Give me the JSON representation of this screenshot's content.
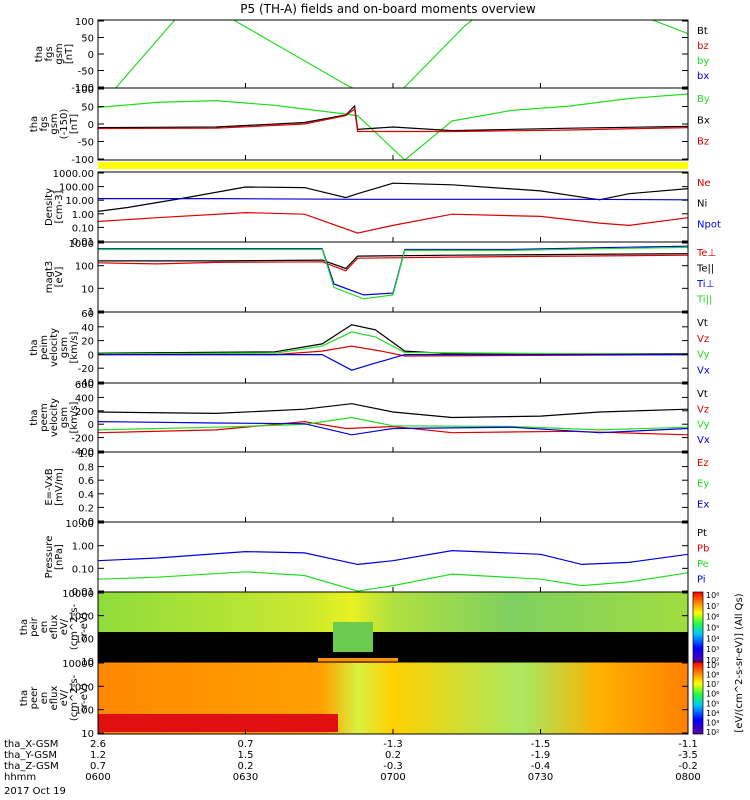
{
  "title": "P5 (TH-A) fields and on-board moments overview",
  "date": "2017 Oct 19",
  "colors": {
    "black": "#000000",
    "red": "#dd0000",
    "green": "#22dd22",
    "blue": "#0000dd",
    "yellow": "#ffff00"
  },
  "chart_data": [
    {
      "type": "line",
      "ylabel": [
        "tha",
        "fgs",
        "gsm",
        "[nT]"
      ],
      "ylim": [
        -100,
        100
      ],
      "yticks": [
        "100",
        "50",
        "0",
        "-50",
        "-100"
      ],
      "legend": [
        "Bt",
        "bz",
        "by",
        "bx"
      ],
      "series": [
        {
          "name": "by",
          "points": [
            [
              0,
              -160
            ],
            [
              0.06,
              -40
            ],
            [
              0.14,
              120
            ],
            [
              0.22,
              110
            ],
            [
              0.42,
              -90
            ],
            [
              0.49,
              -150
            ],
            [
              0.62,
              80
            ],
            [
              0.75,
              260
            ],
            [
              0.88,
              140
            ],
            [
              1.0,
              60
            ]
          ]
        }
      ]
    },
    {
      "type": "line",
      "ylabel": [
        "tha",
        "fgs",
        "gsm",
        "(-150)",
        "[nT]"
      ],
      "ylim": [
        -120,
        120
      ],
      "yticks": [
        "100",
        "50",
        "0",
        "-50",
        "-100"
      ],
      "legend": [
        "By",
        "Bx",
        "Bz"
      ],
      "series": [
        {
          "name": "By",
          "points": [
            [
              0,
              55
            ],
            [
              0.1,
              72
            ],
            [
              0.2,
              78
            ],
            [
              0.3,
              62
            ],
            [
              0.4,
              38
            ],
            [
              0.44,
              28
            ],
            [
              0.52,
              -120
            ],
            [
              0.6,
              10
            ],
            [
              0.7,
              45
            ],
            [
              0.8,
              60
            ],
            [
              0.9,
              85
            ],
            [
              1.0,
              100
            ]
          ]
        },
        {
          "name": "Bx",
          "points": [
            [
              0,
              -12
            ],
            [
              0.2,
              -10
            ],
            [
              0.35,
              5
            ],
            [
              0.42,
              30
            ],
            [
              0.435,
              60
            ],
            [
              0.44,
              -18
            ],
            [
              0.5,
              -10
            ],
            [
              0.6,
              -22
            ],
            [
              0.8,
              -14
            ],
            [
              1.0,
              -8
            ]
          ]
        },
        {
          "name": "Bz",
          "points": [
            [
              0,
              -15
            ],
            [
              0.2,
              -14
            ],
            [
              0.35,
              0
            ],
            [
              0.42,
              28
            ],
            [
              0.435,
              50
            ],
            [
              0.44,
              -25
            ],
            [
              0.6,
              -25
            ],
            [
              0.8,
              -20
            ],
            [
              1.0,
              -12
            ]
          ]
        }
      ]
    },
    {
      "type": "line",
      "ylabel": [
        "Density",
        "[cm-3]"
      ],
      "yscale": "log",
      "ylim": [
        0.01,
        3000
      ],
      "yticks": [
        "1000.00",
        "100.00",
        "10.00",
        "1.00",
        "0.10",
        "0.01"
      ],
      "legend": [
        "Ne",
        "Ni",
        "Npot"
      ],
      "series": [
        {
          "name": "Ne",
          "points": [
            [
              0,
              2.5
            ],
            [
              0.05,
              5
            ],
            [
              0.15,
              30
            ],
            [
              0.25,
              200
            ],
            [
              0.35,
              180
            ],
            [
              0.42,
              30
            ],
            [
              0.44,
              60
            ],
            [
              0.5,
              400
            ],
            [
              0.6,
              300
            ],
            [
              0.75,
              100
            ],
            [
              0.85,
              20
            ],
            [
              0.9,
              60
            ],
            [
              1.0,
              150
            ]
          ]
        },
        {
          "name": "Ni",
          "points": [
            [
              0,
              25
            ],
            [
              0.2,
              25
            ],
            [
              0.44,
              22
            ],
            [
              0.6,
              22
            ],
            [
              0.8,
              22
            ],
            [
              1.0,
              20
            ]
          ]
        },
        {
          "name": "Npot",
          "points": [
            [
              0,
              0.4
            ],
            [
              0.1,
              0.8
            ],
            [
              0.25,
              2
            ],
            [
              0.35,
              1.5
            ],
            [
              0.44,
              0.05
            ],
            [
              0.5,
              0.2
            ],
            [
              0.6,
              1.5
            ],
            [
              0.75,
              1.0
            ],
            [
              0.85,
              0.3
            ],
            [
              0.9,
              0.2
            ],
            [
              1.0,
              0.8
            ]
          ]
        }
      ]
    },
    {
      "type": "line",
      "ylabel": [
        "magt3",
        "[eV]"
      ],
      "yscale": "log",
      "ylim": [
        1,
        5000
      ],
      "yticks": [
        "1000",
        "100",
        "10",
        "1"
      ],
      "legend": [
        "Te⊥",
        "Te||",
        "Ti⊥",
        "Ti||"
      ],
      "series": [
        {
          "name": "Te⊥",
          "points": [
            [
              0,
              400
            ],
            [
              0.1,
              350
            ],
            [
              0.2,
              420
            ],
            [
              0.38,
              450
            ],
            [
              0.42,
              150
            ],
            [
              0.44,
              700
            ],
            [
              0.6,
              800
            ],
            [
              0.8,
              900
            ],
            [
              1.0,
              1000
            ]
          ]
        },
        {
          "name": "Te||",
          "points": [
            [
              0,
              500
            ],
            [
              0.2,
              500
            ],
            [
              0.38,
              550
            ],
            [
              0.42,
              200
            ],
            [
              0.44,
              900
            ],
            [
              0.6,
              1000
            ],
            [
              1.0,
              1200
            ]
          ]
        },
        {
          "name": "Ti⊥",
          "points": [
            [
              0,
              2200
            ],
            [
              0.38,
              2200
            ],
            [
              0.4,
              30
            ],
            [
              0.45,
              8
            ],
            [
              0.5,
              10
            ],
            [
              0.52,
              2000
            ],
            [
              0.7,
              2000
            ],
            [
              0.85,
              2500
            ],
            [
              1.0,
              3000
            ]
          ]
        },
        {
          "name": "Ti||",
          "points": [
            [
              0,
              2000
            ],
            [
              0.38,
              2000
            ],
            [
              0.4,
              20
            ],
            [
              0.45,
              5
            ],
            [
              0.5,
              8
            ],
            [
              0.52,
              1800
            ],
            [
              0.7,
              1800
            ],
            [
              0.85,
              2200
            ],
            [
              1.0,
              2600
            ]
          ]
        }
      ]
    },
    {
      "type": "line",
      "ylabel": [
        "tha",
        "peim",
        "velocity",
        "gsm",
        "[km/s]"
      ],
      "ylim": [
        -40,
        60
      ],
      "yticks": [
        "60",
        "40",
        "20",
        "0",
        "-20",
        "-40"
      ],
      "legend": [
        "Vt",
        "Vz",
        "Vy",
        "Vx"
      ],
      "series": [
        {
          "name": "Vt",
          "points": [
            [
              0,
              2
            ],
            [
              0.3,
              4
            ],
            [
              0.38,
              15
            ],
            [
              0.43,
              42
            ],
            [
              0.47,
              35
            ],
            [
              0.52,
              5
            ],
            [
              0.6,
              1
            ],
            [
              1.0,
              1
            ]
          ]
        },
        {
          "name": "Vz",
          "points": [
            [
              0,
              0
            ],
            [
              0.3,
              0
            ],
            [
              0.38,
              5
            ],
            [
              0.43,
              12
            ],
            [
              0.48,
              5
            ],
            [
              0.52,
              -2
            ],
            [
              1.0,
              0
            ]
          ]
        },
        {
          "name": "Vy",
          "points": [
            [
              0,
              1
            ],
            [
              0.3,
              2
            ],
            [
              0.38,
              12
            ],
            [
              0.43,
              32
            ],
            [
              0.47,
              25
            ],
            [
              0.52,
              3
            ],
            [
              1.0,
              0
            ]
          ]
        },
        {
          "name": "Vx",
          "points": [
            [
              0,
              0
            ],
            [
              0.38,
              0
            ],
            [
              0.43,
              -22
            ],
            [
              0.47,
              -12
            ],
            [
              0.52,
              0
            ],
            [
              1.0,
              0
            ]
          ]
        }
      ]
    },
    {
      "type": "line",
      "ylabel": [
        "tha",
        "peem",
        "velocity",
        "gsm",
        "[km/s]"
      ],
      "ylim": [
        -400,
        600
      ],
      "yticks": [
        "600",
        "400",
        "200",
        "0",
        "-200",
        "-400"
      ],
      "legend": [
        "Vt",
        "Vz",
        "Vy",
        "Vx"
      ],
      "series": [
        {
          "name": "Vt",
          "points": [
            [
              0,
              180
            ],
            [
              0.2,
              160
            ],
            [
              0.35,
              220
            ],
            [
              0.43,
              300
            ],
            [
              0.5,
              180
            ],
            [
              0.6,
              100
            ],
            [
              0.75,
              120
            ],
            [
              0.85,
              180
            ],
            [
              1.0,
              220
            ]
          ]
        },
        {
          "name": "Vz",
          "points": [
            [
              0,
              -120
            ],
            [
              0.2,
              -80
            ],
            [
              0.35,
              40
            ],
            [
              0.42,
              -60
            ],
            [
              0.5,
              -30
            ],
            [
              0.6,
              -120
            ],
            [
              0.8,
              -100
            ],
            [
              1.0,
              -150
            ]
          ]
        },
        {
          "name": "Vy",
          "points": [
            [
              0,
              -80
            ],
            [
              0.2,
              -40
            ],
            [
              0.35,
              0
            ],
            [
              0.43,
              100
            ],
            [
              0.5,
              -20
            ],
            [
              0.7,
              -30
            ],
            [
              0.85,
              -80
            ],
            [
              1.0,
              -40
            ]
          ]
        },
        {
          "name": "Vx",
          "points": [
            [
              0,
              40
            ],
            [
              0.2,
              20
            ],
            [
              0.35,
              10
            ],
            [
              0.43,
              -150
            ],
            [
              0.5,
              -60
            ],
            [
              0.7,
              -40
            ],
            [
              0.85,
              -120
            ],
            [
              1.0,
              -60
            ]
          ]
        }
      ]
    },
    {
      "type": "line",
      "ylabel": [
        "E=-VxB",
        "[mV/m]"
      ],
      "ylim": [
        0,
        1
      ],
      "yticks": [
        "1.0",
        "0.8",
        "0.6",
        "0.4",
        "0.2",
        "0.0"
      ],
      "legend": [
        "Ez",
        "Ey",
        "Ex"
      ],
      "series": []
    },
    {
      "type": "line",
      "ylabel": [
        "Pressure",
        "[nPa]"
      ],
      "yscale": "log",
      "ylim": [
        0.01,
        20
      ],
      "yticks": [
        "10.00",
        "1.00",
        "0.10",
        "0.01"
      ],
      "legend": [
        "Pt",
        "Pb",
        "Pe",
        "Pi"
      ],
      "series": [
        {
          "name": "Pi",
          "points": [
            [
              0,
              0.3
            ],
            [
              0.1,
              0.4
            ],
            [
              0.25,
              0.8
            ],
            [
              0.35,
              0.7
            ],
            [
              0.44,
              0.2
            ],
            [
              0.5,
              0.3
            ],
            [
              0.6,
              0.9
            ],
            [
              0.75,
              0.6
            ],
            [
              0.82,
              0.2
            ],
            [
              0.9,
              0.25
            ],
            [
              1.0,
              0.6
            ]
          ]
        },
        {
          "name": "Pe",
          "points": [
            [
              0,
              0.04
            ],
            [
              0.1,
              0.05
            ],
            [
              0.25,
              0.09
            ],
            [
              0.35,
              0.06
            ],
            [
              0.44,
              0.011
            ],
            [
              0.5,
              0.02
            ],
            [
              0.6,
              0.07
            ],
            [
              0.75,
              0.04
            ],
            [
              0.82,
              0.02
            ],
            [
              0.9,
              0.03
            ],
            [
              1.0,
              0.08
            ]
          ]
        }
      ]
    },
    {
      "type": "heatmap",
      "ylabel": [
        "tha",
        "peir",
        "en",
        "eflux",
        "eV/",
        "(cm^2-s-",
        "sr-eV)"
      ],
      "yscale": "log",
      "ylim": [
        5,
        30000
      ],
      "yticks": [
        "10000",
        "1000",
        "100",
        "10"
      ],
      "colorbar_label": "eV/(cm^2-s-sr-eV)",
      "colorbar_ticks": [
        "10⁸",
        "10⁷",
        "10⁶",
        "10⁵",
        "10⁴",
        "10³",
        "10²"
      ]
    },
    {
      "type": "heatmap",
      "ylabel": [
        "tha",
        "peer",
        "en",
        "eflux",
        "eV/",
        "(cm^2-s-",
        "sr-eV)"
      ],
      "yscale": "log",
      "ylim": [
        5,
        30000
      ],
      "yticks": [
        "10000",
        "1000",
        "100",
        "10"
      ],
      "colorbar_label": "eV/(cm^2-s-sr-eV)",
      "colorbar_ticks": [
        "10⁹",
        "10⁸",
        "10⁷",
        "10⁶",
        "10⁵",
        "10⁴",
        "10³",
        "10²"
      ]
    }
  ],
  "x_axis": {
    "row_labels": [
      "tha_X-GSM",
      "tha_Y-GSM",
      "tha_Z-GSM",
      "hhmm"
    ],
    "columns": [
      {
        "x": "2.6",
        "y": "1.2",
        "z": "0.7",
        "t": "0600"
      },
      {
        "x": "0.7",
        "y": "1.5",
        "z": "0.2",
        "t": "0630"
      },
      {
        "x": "-1.3",
        "y": "0.2",
        "z": "-0.3",
        "t": "0700"
      },
      {
        "x": "-1.5",
        "y": "-1.9",
        "z": "-0.4",
        "t": "0730"
      },
      {
        "x": "-1.1",
        "y": "-3.5",
        "z": "-0.2",
        "t": "0800"
      }
    ]
  }
}
